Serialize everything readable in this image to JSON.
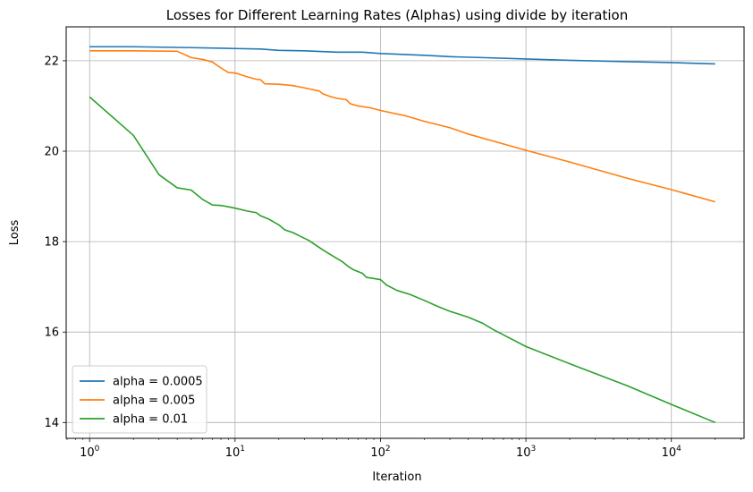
{
  "chart_data": {
    "type": "line",
    "title": "Losses for Different Learning Rates (Alphas) using divide by iteration",
    "xlabel": "Iteration",
    "ylabel": "Loss",
    "xscale": "log",
    "xlim": [
      0.69,
      31600
    ],
    "ylim": [
      13.65,
      22.75
    ],
    "x_ticks": [
      {
        "value": 1,
        "base": "10",
        "exp": "0"
      },
      {
        "value": 10,
        "base": "10",
        "exp": "1"
      },
      {
        "value": 100,
        "base": "10",
        "exp": "2"
      },
      {
        "value": 1000,
        "base": "10",
        "exp": "3"
      },
      {
        "value": 10000,
        "base": "10",
        "exp": "4"
      }
    ],
    "y_ticks": [
      14,
      16,
      18,
      20,
      22
    ],
    "grid": true,
    "legend_position": "lower-left",
    "series": [
      {
        "name": "alpha = 0.0005",
        "color": "#1f77b4",
        "points": [
          [
            1,
            22.31
          ],
          [
            2,
            22.31
          ],
          [
            5,
            22.29
          ],
          [
            10,
            22.27
          ],
          [
            15,
            22.26
          ],
          [
            20,
            22.23
          ],
          [
            30,
            22.22
          ],
          [
            50,
            22.19
          ],
          [
            75,
            22.19
          ],
          [
            100,
            22.16
          ],
          [
            200,
            22.12
          ],
          [
            300,
            22.09
          ],
          [
            500,
            22.07
          ],
          [
            1000,
            22.04
          ],
          [
            2000,
            22.01
          ],
          [
            5000,
            21.98
          ],
          [
            10000,
            21.96
          ],
          [
            20000,
            21.93
          ]
        ]
      },
      {
        "name": "alpha = 0.005",
        "color": "#ff7f0e",
        "points": [
          [
            1,
            22.22
          ],
          [
            2,
            22.22
          ],
          [
            4,
            22.21
          ],
          [
            5,
            22.07
          ],
          [
            6,
            22.03
          ],
          [
            7,
            21.97
          ],
          [
            8,
            21.84
          ],
          [
            9,
            21.74
          ],
          [
            10,
            21.73
          ],
          [
            11,
            21.69
          ],
          [
            12,
            21.65
          ],
          [
            14,
            21.59
          ],
          [
            15,
            21.58
          ],
          [
            16,
            21.49
          ],
          [
            20,
            21.48
          ],
          [
            25,
            21.45
          ],
          [
            30,
            21.4
          ],
          [
            38,
            21.33
          ],
          [
            40,
            21.27
          ],
          [
            45,
            21.21
          ],
          [
            50,
            21.17
          ],
          [
            58,
            21.14
          ],
          [
            62,
            21.05
          ],
          [
            70,
            21.0
          ],
          [
            85,
            20.96
          ],
          [
            100,
            20.9
          ],
          [
            150,
            20.78
          ],
          [
            200,
            20.66
          ],
          [
            300,
            20.52
          ],
          [
            400,
            20.38
          ],
          [
            600,
            20.22
          ],
          [
            1000,
            20.02
          ],
          [
            2000,
            19.76
          ],
          [
            5000,
            19.4
          ],
          [
            10000,
            19.15
          ],
          [
            20000,
            18.88
          ]
        ]
      },
      {
        "name": "alpha = 0.01",
        "color": "#2ca02c",
        "points": [
          [
            1,
            21.2
          ],
          [
            2,
            20.35
          ],
          [
            3,
            19.48
          ],
          [
            4,
            19.19
          ],
          [
            5,
            19.14
          ],
          [
            6,
            18.93
          ],
          [
            7,
            18.81
          ],
          [
            8,
            18.8
          ],
          [
            9,
            18.77
          ],
          [
            10,
            18.74
          ],
          [
            12,
            18.68
          ],
          [
            14,
            18.64
          ],
          [
            15,
            18.57
          ],
          [
            17,
            18.5
          ],
          [
            20,
            18.37
          ],
          [
            22,
            18.26
          ],
          [
            25,
            18.2
          ],
          [
            28,
            18.12
          ],
          [
            32,
            18.03
          ],
          [
            36,
            17.92
          ],
          [
            40,
            17.82
          ],
          [
            45,
            17.72
          ],
          [
            50,
            17.63
          ],
          [
            55,
            17.55
          ],
          [
            60,
            17.45
          ],
          [
            65,
            17.38
          ],
          [
            75,
            17.3
          ],
          [
            80,
            17.21
          ],
          [
            100,
            17.16
          ],
          [
            110,
            17.04
          ],
          [
            130,
            16.92
          ],
          [
            160,
            16.83
          ],
          [
            200,
            16.7
          ],
          [
            250,
            16.56
          ],
          [
            300,
            16.46
          ],
          [
            400,
            16.33
          ],
          [
            500,
            16.2
          ],
          [
            600,
            16.05
          ],
          [
            1000,
            15.68
          ],
          [
            2000,
            15.3
          ],
          [
            5000,
            14.81
          ],
          [
            10000,
            14.4
          ],
          [
            20000,
            14.0
          ]
        ]
      }
    ]
  }
}
